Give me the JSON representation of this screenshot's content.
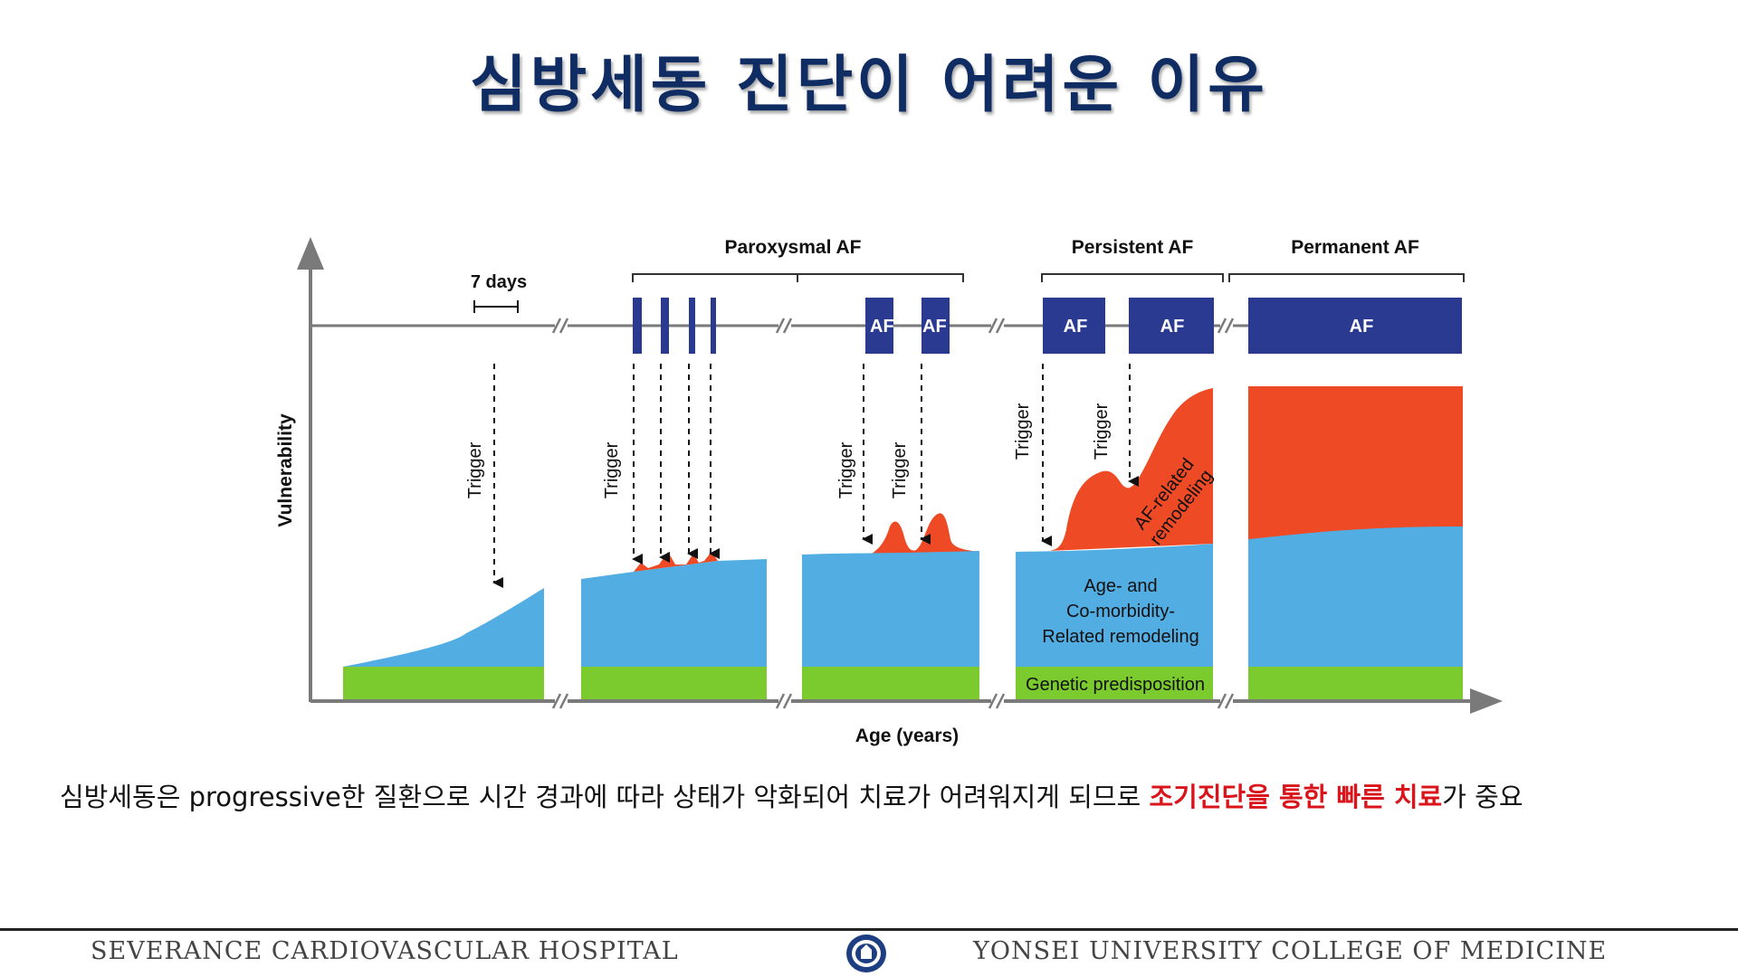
{
  "title": "심방세동 진단이 어려운 이유",
  "diagram": {
    "phases": {
      "paroxysmal": "Paroxysmal AF",
      "persistent": "Persistent AF",
      "permanent": "Permanent AF"
    },
    "seven_days": "7 days",
    "y_axis_label": "Vulnerability",
    "x_axis_label": "Age (years)",
    "af_label": "AF",
    "trigger_label": "Trigger",
    "af_related_remodeling": [
      "AF-related",
      "remodeling"
    ],
    "comorbidity_remodeling": [
      "Age- and",
      "Co-morbidity-",
      "Related remodeling"
    ],
    "genetic": "Genetic predisposition"
  },
  "colors": {
    "title": "#0f2c63",
    "af_box": "#2b3a91",
    "blue_layer": "#52ade3",
    "green_layer": "#7ccb2e",
    "red_layer": "#ee4a25",
    "axis": "#7a7a7a",
    "highlight": "#d9141b"
  },
  "caption": {
    "prefix": "심방세동은 progressive한 질환으로 시간 경과에 따라 상태가 악화되어 치료가 어려워지게 되므로 ",
    "highlight": "조기진단을 통한 빠른 치료",
    "suffix": "가 중요"
  },
  "footer": {
    "left": "SEVERANCE CARDIOVASCULAR HOSPITAL",
    "right": "YONSEI UNIVERSITY COLLEGE OF MEDICINE"
  }
}
